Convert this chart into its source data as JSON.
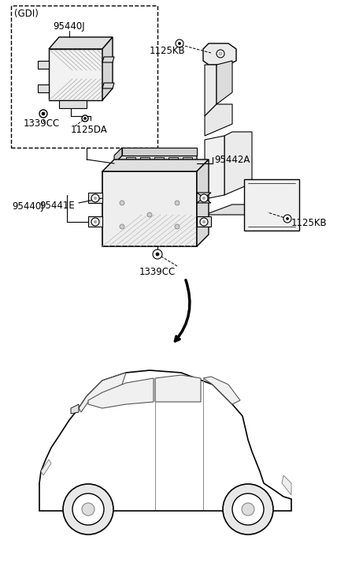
{
  "bg_color": "#ffffff",
  "line_color": "#000000",
  "labels": {
    "GDI": "(GDI)",
    "95440J_top": "95440J",
    "1339CC_top": "1339CC",
    "1125DA": "1125DA",
    "1125KB_top": "1125KB",
    "95442A": "95442A",
    "95440J_main": "95440J",
    "95441E": "95441E",
    "1125KB_right": "1125KB",
    "1339CC_main": "1339CC"
  },
  "font_size": 8.5
}
